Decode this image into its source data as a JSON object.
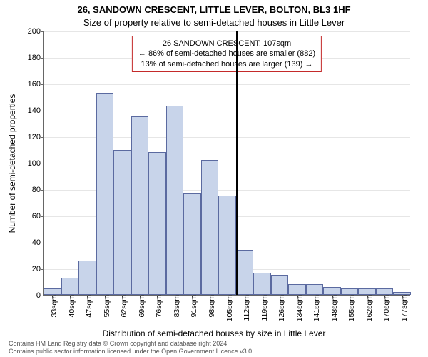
{
  "titles": {
    "line1": "26, SANDOWN CRESCENT, LITTLE LEVER, BOLTON, BL3 1HF",
    "line2": "Size of property relative to semi-detached houses in Little Lever"
  },
  "axes": {
    "ylabel": "Number of semi-detached properties",
    "xcaption": "Distribution of semi-detached houses by size in Little Lever",
    "ylim": [
      0,
      200
    ],
    "ytick_step": 20,
    "ytick_labels": [
      "0",
      "20",
      "40",
      "60",
      "80",
      "100",
      "120",
      "140",
      "160",
      "180",
      "200"
    ],
    "xtick_labels": [
      "33sqm",
      "40sqm",
      "47sqm",
      "55sqm",
      "62sqm",
      "69sqm",
      "76sqm",
      "83sqm",
      "91sqm",
      "98sqm",
      "105sqm",
      "112sqm",
      "119sqm",
      "126sqm",
      "134sqm",
      "141sqm",
      "148sqm",
      "155sqm",
      "162sqm",
      "170sqm",
      "177sqm"
    ],
    "xlabel_fontsize": 10.5,
    "ylabel_fontsize": 12,
    "ytick_fontsize": 11,
    "grid_color": "#e6e6e6",
    "axis_color": "#666666"
  },
  "chart": {
    "type": "histogram",
    "bin_count": 21,
    "values": [
      5,
      13,
      26,
      153,
      110,
      135,
      108,
      143,
      77,
      102,
      75,
      34,
      17,
      15,
      8,
      8,
      6,
      5,
      5,
      5,
      2
    ],
    "bar_fill": "#c8d4ea",
    "bar_border": "#5b6aa0",
    "bar_border_width": 1,
    "background_color": "#ffffff"
  },
  "marker": {
    "bin_index_after": 10,
    "color": "#000000"
  },
  "annotation": {
    "border_color": "#c42a2a",
    "lines": [
      "26 SANDOWN CRESCENT: 107sqm",
      "← 86% of semi-detached houses are smaller (882)",
      "13% of semi-detached houses are larger (139) →"
    ]
  },
  "footer": {
    "line1": "Contains HM Land Registry data © Crown copyright and database right 2024.",
    "line2": "Contains public sector information licensed under the Open Government Licence v3.0."
  }
}
